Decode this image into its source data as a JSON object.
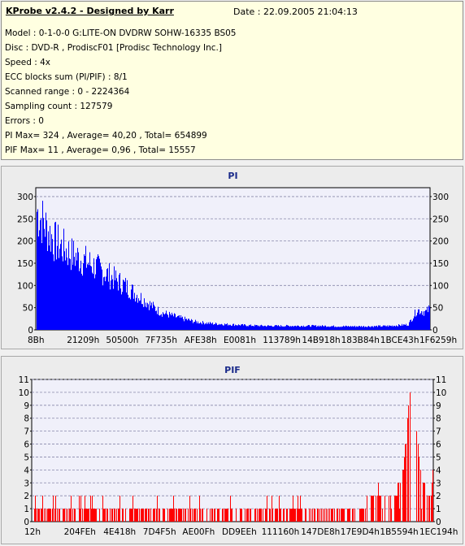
{
  "header": {
    "app_title": "KProbe v2.4.2 - Designed by Karr",
    "date": "Date : 22.09.2005 21:04:13"
  },
  "info_lines": [
    "Model : 0-1-0-0 G:LITE-ON DVDRW SOHW-16335 BS05",
    "Disc : DVD-R , ProdiscF01 [Prodisc Technology Inc.]",
    "Speed : 4x",
    "ECC blocks sum (PI/PIF) : 8/1",
    "Scanned range : 0 - 2224364",
    "Sampling count : 127579",
    "Errors : 0",
    "PI Max= 324 , Average= 40,20 , Total= 654899",
    "PIF Max= 11 , Average= 0,96 , Total= 15557"
  ],
  "chart_data": [
    {
      "type": "bar",
      "title": "PI",
      "color": "#0000ff",
      "plot_background": "#f0f0fa",
      "grid": true,
      "ylim": [
        0,
        320
      ],
      "yticks": [
        0,
        50,
        100,
        150,
        200,
        250,
        300
      ],
      "x_tick_labels": [
        "8Bh",
        "21209h",
        "50500h",
        "7F735h",
        "AFE38h",
        "E0081h",
        "113789h",
        "14B918h",
        "183B84h",
        "1BCE43h",
        "1F6259h"
      ],
      "xlim": [
        0,
        2224364
      ],
      "x": [
        0,
        100000,
        200000,
        300000,
        400000,
        500000,
        600000,
        700000,
        800000,
        900000,
        1000000,
        1100000,
        1200000,
        1300000,
        1400000,
        1500000,
        1600000,
        1700000,
        1800000,
        1900000,
        2000000,
        2100000,
        2150000,
        2200000,
        2224364
      ],
      "values": [
        270,
        200,
        170,
        150,
        125,
        100,
        70,
        40,
        28,
        18,
        14,
        12,
        10,
        9,
        9,
        9,
        9,
        8,
        8,
        8,
        9,
        12,
        45,
        40,
        50
      ]
    },
    {
      "type": "bar",
      "title": "PIF",
      "color": "#ff0000",
      "plot_background": "#f0f0fa",
      "grid": true,
      "ylim": [
        0,
        11
      ],
      "yticks": [
        0,
        1,
        2,
        3,
        4,
        5,
        6,
        7,
        8,
        9,
        10,
        11
      ],
      "x_tick_labels": [
        "12h",
        "204FEh",
        "4E418h",
        "7D4F5h",
        "AE00Fh",
        "DD9EEh",
        "111160h",
        "147DE8h",
        "17E9D4h",
        "1B5594h",
        "1EC194h"
      ],
      "xlim": [
        0,
        2224364
      ],
      "x": [
        0,
        200000,
        400000,
        600000,
        800000,
        1000000,
        1200000,
        1400000,
        1600000,
        1800000,
        1900000,
        2000000,
        2050000,
        2100000,
        2150000,
        2200000,
        2224364
      ],
      "values": [
        1,
        1,
        1,
        1,
        1,
        1,
        1,
        1,
        1,
        1,
        2,
        2,
        3,
        11,
        4,
        2,
        3
      ]
    }
  ]
}
